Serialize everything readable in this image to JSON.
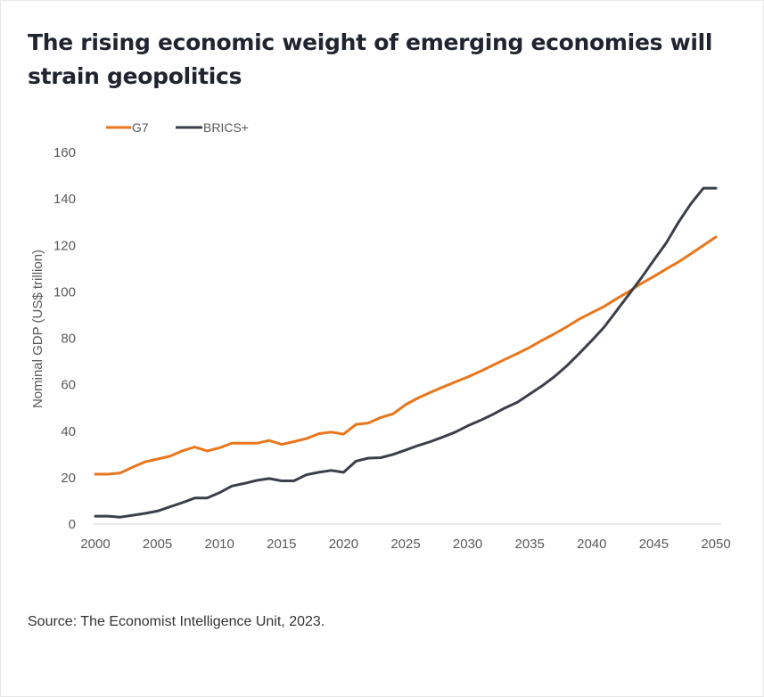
{
  "title": "The rising economic weight of emerging economies will strain geopolitics",
  "source": "Source: The Economist Intelligence Unit, 2023.",
  "chart_data": {
    "type": "line",
    "title": "The rising economic weight of emerging economies will strain geopolitics",
    "ylabel": "Nominal GDP (US$ trillion)",
    "xlabel": "",
    "xlim": [
      2000,
      2050
    ],
    "ylim": [
      0,
      160
    ],
    "x_ticks": [
      2000,
      2005,
      2010,
      2015,
      2020,
      2025,
      2030,
      2035,
      2040,
      2045,
      2050
    ],
    "y_ticks": [
      0,
      20,
      40,
      60,
      80,
      100,
      120,
      140,
      160
    ],
    "grid": false,
    "legend_position": "top-left",
    "x": [
      2000,
      2001,
      2002,
      2003,
      2004,
      2005,
      2006,
      2007,
      2008,
      2009,
      2010,
      2011,
      2012,
      2013,
      2014,
      2015,
      2016,
      2017,
      2018,
      2019,
      2020,
      2021,
      2022,
      2023,
      2024,
      2025,
      2026,
      2027,
      2028,
      2029,
      2030,
      2031,
      2032,
      2033,
      2034,
      2035,
      2036,
      2037,
      2038,
      2039,
      2040,
      2041,
      2042,
      2043,
      2044,
      2045,
      2046,
      2047,
      2048,
      2049,
      2050
    ],
    "series": [
      {
        "name": "G7",
        "color": "#e8761c",
        "values": [
          21.5,
          21.5,
          22,
          24.5,
          26.8,
          28,
          29.2,
          31.5,
          33.2,
          31.5,
          32.8,
          34.8,
          34.8,
          34.8,
          36,
          34.3,
          35.5,
          36.8,
          38.9,
          39.6,
          38.7,
          42.9,
          43.5,
          45.9,
          47.5,
          51.4,
          54.3,
          56.7,
          59,
          61.2,
          63.3,
          65.7,
          68.3,
          70.9,
          73.4,
          76.1,
          79.1,
          81.9,
          85,
          88.3,
          91,
          93.7,
          97,
          100.2,
          103.6,
          106.6,
          109.8,
          112.9,
          116.4,
          120,
          123.6
        ]
      },
      {
        "name": "BRICS+",
        "color": "#3b3f4a",
        "values": [
          3.4,
          3.4,
          3,
          3.8,
          4.6,
          5.6,
          7.4,
          9.2,
          11.2,
          11.2,
          13.5,
          16.4,
          17.5,
          18.8,
          19.6,
          18.6,
          18.6,
          21.2,
          22.3,
          23.1,
          22.3,
          27.1,
          28.4,
          28.6,
          30,
          31.9,
          33.8,
          35.5,
          37.5,
          39.6,
          42.3,
          44.6,
          47.1,
          50,
          52.4,
          56,
          59.5,
          63.5,
          68.2,
          73.5,
          79,
          84.8,
          91.8,
          98.9,
          106,
          113.6,
          121,
          130,
          138,
          144.6,
          144.6
        ]
      }
    ]
  }
}
